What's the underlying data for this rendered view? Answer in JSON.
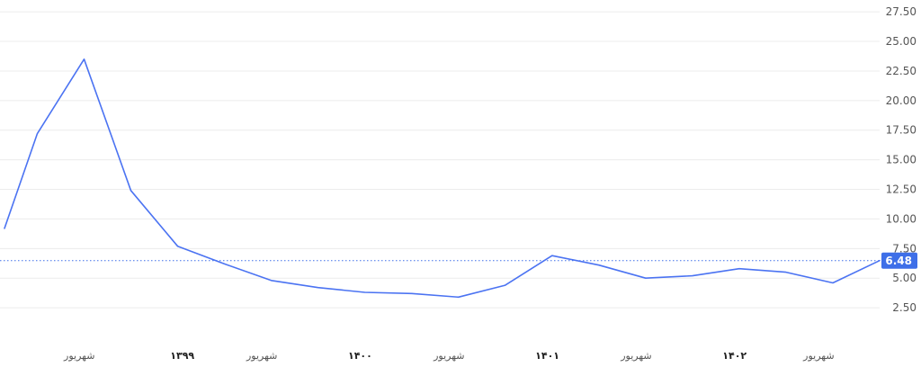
{
  "chart_data": {
    "type": "line",
    "title": "",
    "xlabel": "",
    "ylabel": "",
    "ylim": [
      0,
      28.5
    ],
    "grid": true,
    "y_axis_side": "right",
    "yticks": [
      "27.50",
      "25.00",
      "22.50",
      "20.00",
      "17.50",
      "15.00",
      "12.50",
      "10.00",
      "7.50",
      "5.00",
      "2.50"
    ],
    "ytick_values": [
      27.5,
      25.0,
      22.5,
      20.0,
      17.5,
      15.0,
      12.5,
      10.0,
      7.5,
      5.0,
      2.5
    ],
    "x_ticks": [
      {
        "label": "شهریور",
        "bold": false,
        "at": 1.6
      },
      {
        "label": "۱۳۹۹",
        "bold": true,
        "at": 3.8
      },
      {
        "label": "شهریور",
        "bold": false,
        "at": 5.5
      },
      {
        "label": "۱۴۰۰",
        "bold": true,
        "at": 7.6
      },
      {
        "label": "شهریور",
        "bold": false,
        "at": 9.5
      },
      {
        "label": "۱۴۰۱",
        "bold": true,
        "at": 11.6
      },
      {
        "label": "شهریور",
        "bold": false,
        "at": 13.5
      },
      {
        "label": "۱۴۰۲",
        "bold": true,
        "at": 15.6
      },
      {
        "label": "شهریور",
        "bold": false,
        "at": 17.4
      }
    ],
    "series": [
      {
        "color": "#4b73f2",
        "x": [
          0,
          0.7,
          1.7,
          2.7,
          3.7,
          4.7,
          5.7,
          6.7,
          7.7,
          8.7,
          9.7,
          10.7,
          11.7,
          12.7,
          13.7,
          14.7,
          15.7,
          16.7,
          17.7,
          18.7
        ],
        "values": [
          9.2,
          17.2,
          23.5,
          12.4,
          7.7,
          6.2,
          4.8,
          4.2,
          3.8,
          3.7,
          3.4,
          4.4,
          6.9,
          6.1,
          5.0,
          5.2,
          5.8,
          5.5,
          4.6,
          6.48
        ]
      }
    ],
    "xlim": [
      0,
      18.7
    ],
    "current_value": {
      "value": 6.48,
      "label": "6.48",
      "color": "#3e6fe8"
    }
  }
}
